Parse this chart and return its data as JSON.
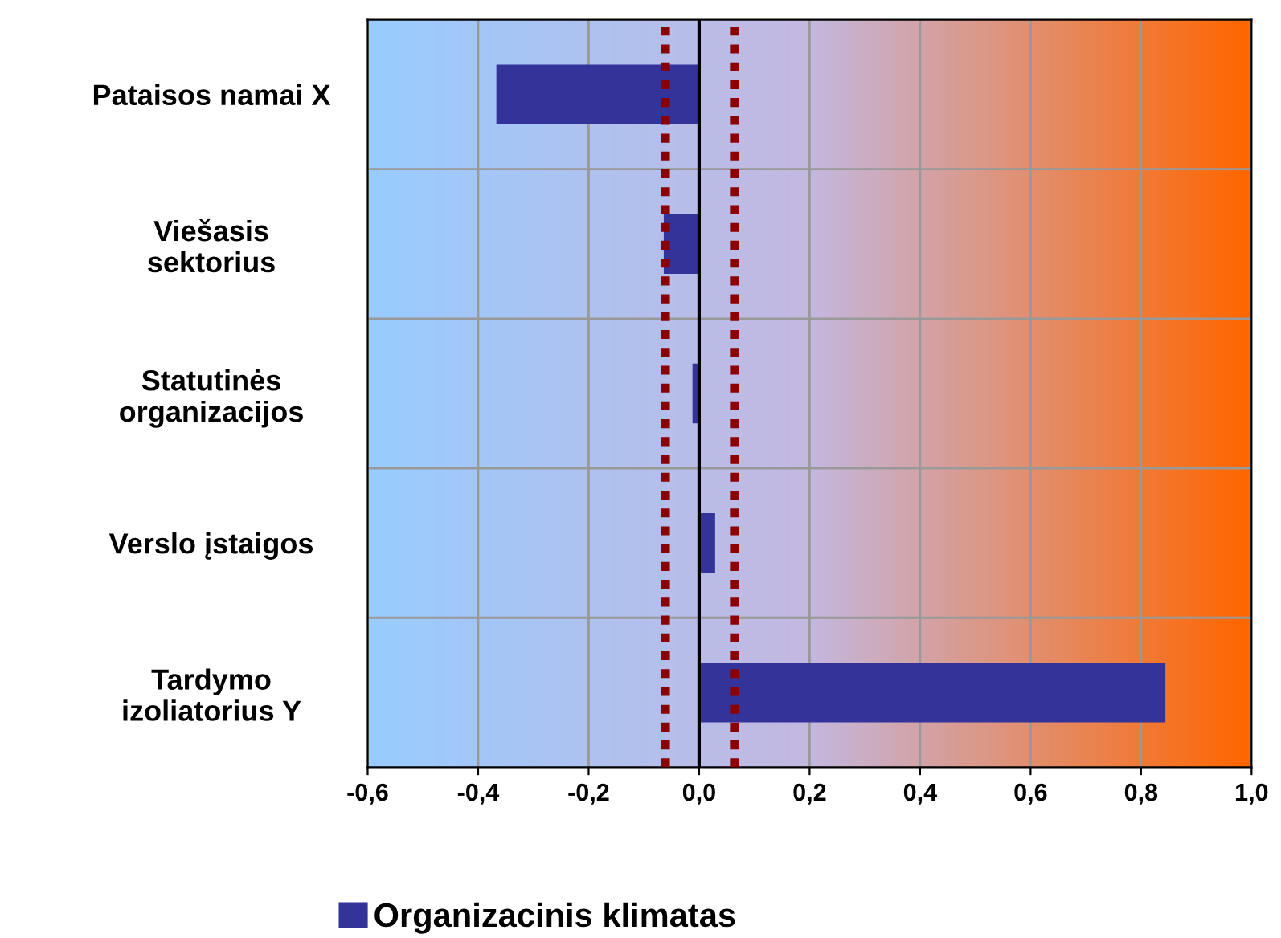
{
  "chart_data": {
    "type": "bar",
    "orientation": "horizontal",
    "categories": [
      "Pataisos namai X",
      "Viešasis\nsektorius",
      "Statutinės\norganizacijos",
      "Verslo įstaigos",
      "Tardymo\nizoliatorius Y"
    ],
    "series": [
      {
        "name": "Organizacinis klimatas",
        "color": "#333399",
        "values": [
          -0.367,
          -0.064,
          -0.012,
          0.029,
          0.844
        ]
      }
    ],
    "xlim": [
      -0.6,
      1.0
    ],
    "xticks": [
      {
        "value": -0.6,
        "label": "-0,6"
      },
      {
        "value": -0.4,
        "label": "-0,4"
      },
      {
        "value": -0.2,
        "label": "-0,2"
      },
      {
        "value": 0.0,
        "label": "0,0"
      },
      {
        "value": 0.2,
        "label": "0,2"
      },
      {
        "value": 0.4,
        "label": "0,4"
      },
      {
        "value": 0.6,
        "label": "0,6"
      },
      {
        "value": 0.8,
        "label": "0,8"
      },
      {
        "value": 1.0,
        "label": "1,0"
      }
    ],
    "ref_lines": [
      {
        "axis": "x",
        "value": -0.061,
        "color": "#8b0000",
        "line_style": "dotted"
      },
      {
        "axis": "x",
        "value": 0.064,
        "color": "#8b0000",
        "line_style": "dotted"
      }
    ],
    "grid": true,
    "legend": "bottom"
  }
}
